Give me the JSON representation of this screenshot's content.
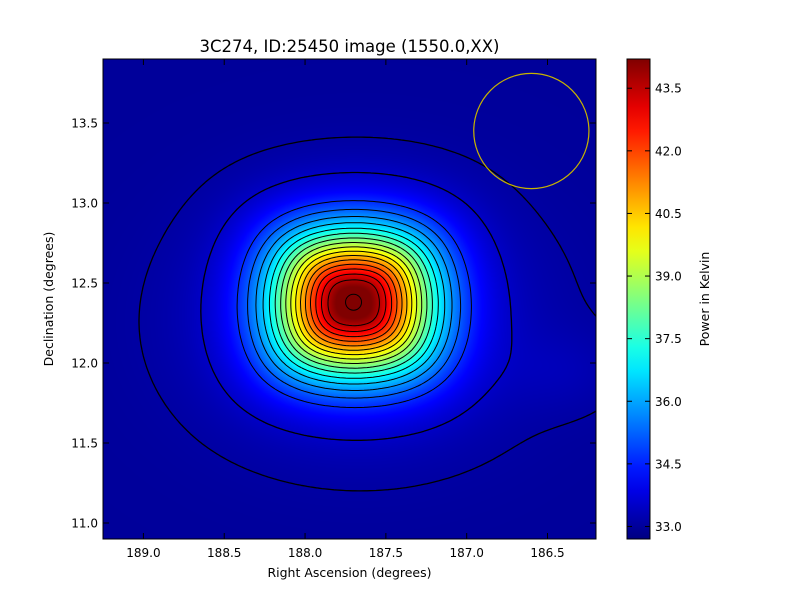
{
  "chart_data": {
    "type": "heatmap",
    "title": "3C274, ID:25450 image (1550.0,XX)",
    "xlabel": "Right Ascension (degrees)",
    "ylabel": "Declination (degrees)",
    "colorbar_label": "Power in Kelvin",
    "xlim": [
      189.25,
      486.2
    ],
    "ylim": [
      10.9,
      13.9
    ],
    "x_ticks": [
      189.0,
      188.5,
      188.0,
      187.5,
      187.0,
      186.5
    ],
    "x_tick_labels": [
      "189.0",
      "188.5",
      "188.0",
      "187.5",
      "187.0",
      "186.5"
    ],
    "y_ticks": [
      11.0,
      11.5,
      12.0,
      12.5,
      13.0,
      13.5
    ],
    "y_tick_labels": [
      "11.0",
      "11.5",
      "12.0",
      "12.5",
      "13.0",
      "13.5"
    ],
    "colorbar_range": [
      32.7,
      44.2
    ],
    "colorbar_ticks": [
      33.0,
      34.5,
      36.0,
      37.5,
      39.0,
      40.5,
      42.0,
      43.5
    ],
    "colorbar_tick_labels": [
      "33.0",
      "34.5",
      "36.0",
      "37.5",
      "39.0",
      "40.5",
      "42.0",
      "43.5"
    ],
    "colormap": "jet",
    "peak": {
      "ra": 187.7,
      "dec": 12.38,
      "value": 44.0
    },
    "background_value": 33.0,
    "contour_levels": [
      33.1,
      33.5,
      34.6,
      35.2,
      35.8,
      36.4,
      37.0,
      37.6,
      38.2,
      38.8,
      39.4,
      40.0,
      40.6,
      41.2,
      41.8,
      42.4,
      43.0,
      43.6
    ],
    "beam_circle": {
      "ra": 186.6,
      "dec": 13.45,
      "radius_deg": 0.36,
      "color": "#c8b400"
    },
    "grid": false,
    "colors": {
      "contour": "#000000",
      "background": "#ffffff"
    }
  }
}
